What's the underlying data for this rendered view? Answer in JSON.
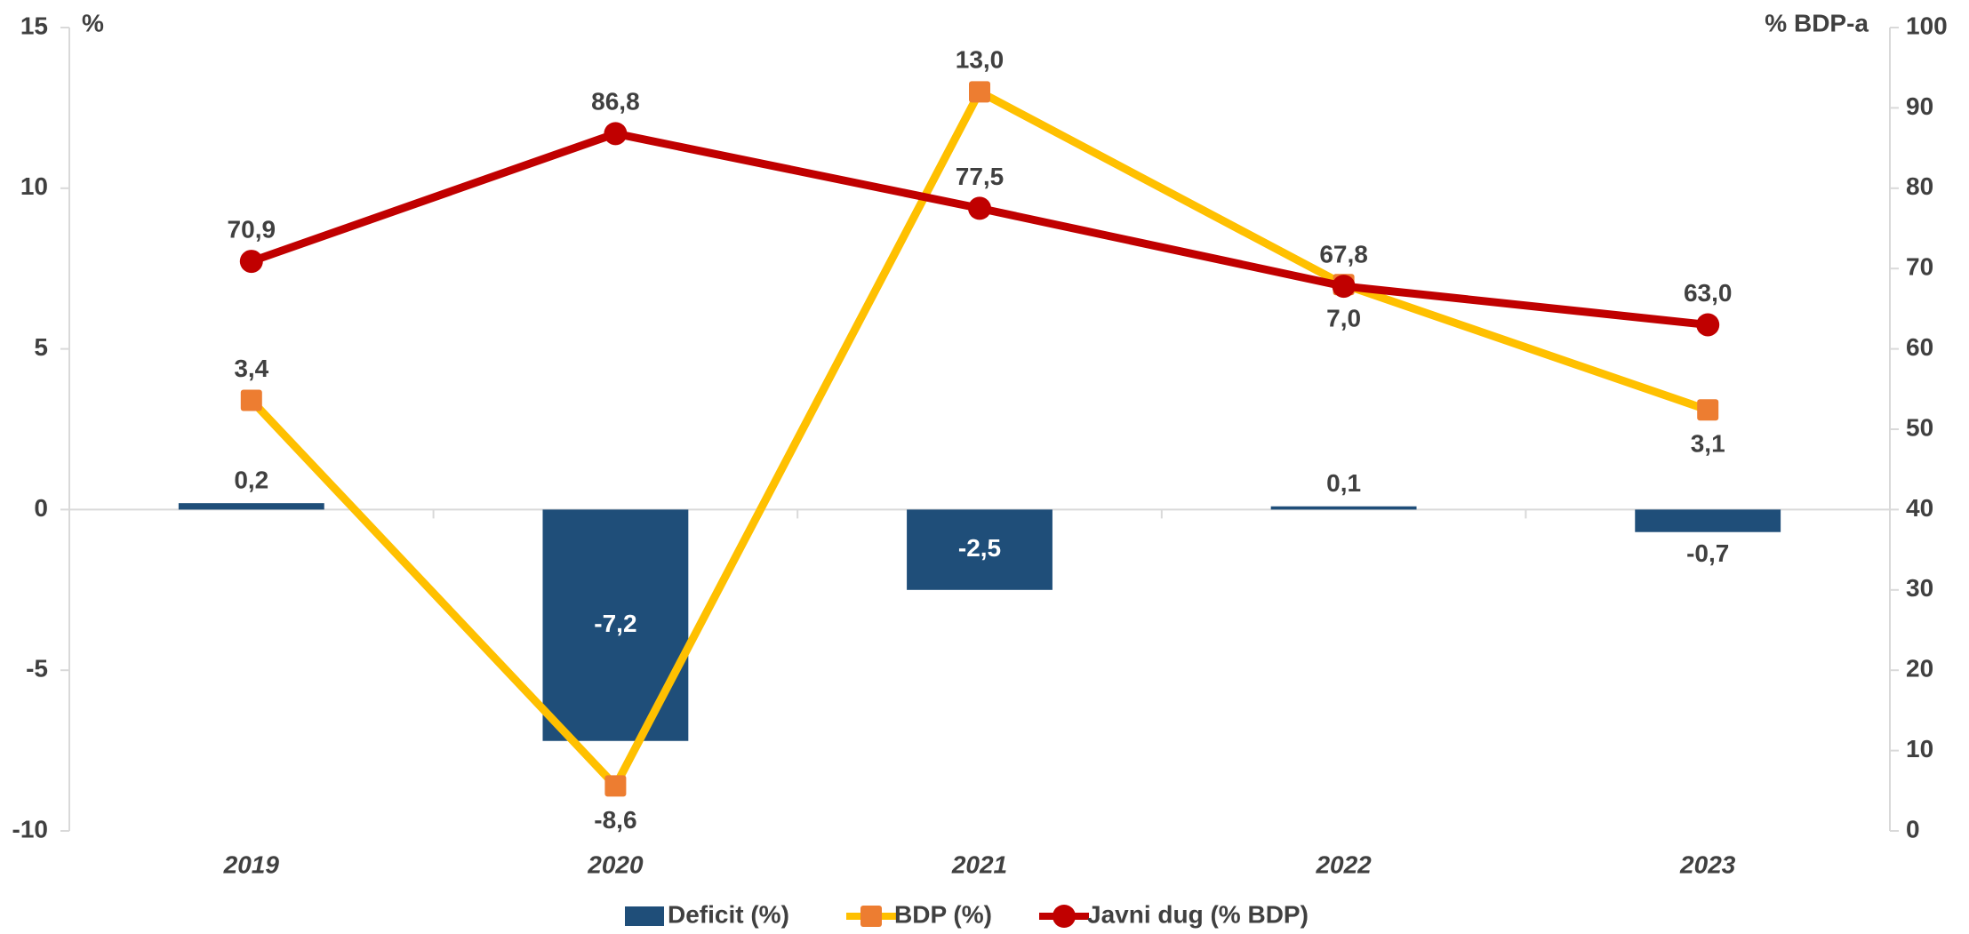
{
  "chart_data": {
    "type": "bar",
    "ylabel": "%",
    "y2label": "% BDP-a",
    "categories": [
      "2019",
      "2020",
      "2021",
      "2022",
      "2023"
    ],
    "series": [
      {
        "name": "Deficit (%)",
        "type": "bar",
        "color": "#1f4e79",
        "values": [
          0.2,
          -7.2,
          -2.5,
          0.1,
          -0.7
        ],
        "value_labels": [
          "0,2",
          "-7,2",
          "-2,5",
          "0,1",
          "-0,7"
        ]
      },
      {
        "name": "BDP (%)",
        "type": "line",
        "color": "#ffc000",
        "marker": "square",
        "marker_color": "#ed7d31",
        "values": [
          3.4,
          -8.6,
          13.0,
          7.0,
          3.1
        ],
        "value_labels": [
          "3,4",
          "-8,6",
          "13,0",
          "7,0",
          "3,1"
        ]
      },
      {
        "name": "Javni dug (% BDP)",
        "type": "line",
        "axis": "y2",
        "color": "#c00000",
        "marker": "circle",
        "marker_color": "#c00000",
        "values": [
          70.9,
          86.8,
          77.5,
          67.8,
          63.0
        ],
        "value_labels": [
          "70,9",
          "86,8",
          "77,5",
          "67,8",
          "63,0"
        ]
      }
    ],
    "ylim": [
      -10,
      15
    ],
    "yticks": [
      -10,
      -5,
      0,
      5,
      10,
      15
    ],
    "y2lim": [
      0,
      100
    ],
    "y2ticks": [
      0,
      10,
      20,
      30,
      40,
      50,
      60,
      70,
      80,
      90,
      100
    ],
    "legend": "bottom"
  }
}
